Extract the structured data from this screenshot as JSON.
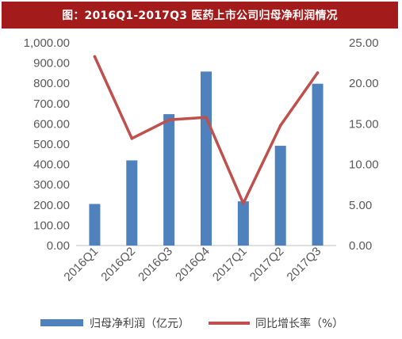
{
  "title": "图：2016Q1-2017Q3 医药上市公司归母净利润情况",
  "chart_data": {
    "type": "bar",
    "title": "图：2016Q1-2017Q3 医药上市公司归母净利润情况",
    "categories": [
      "2016Q1",
      "2016Q2",
      "2016Q3",
      "2016Q4",
      "2017Q1",
      "2017Q2",
      "2017Q3"
    ],
    "series": [
      {
        "name": "归母净利润（亿元）",
        "type": "bar",
        "axis": "left",
        "color": "#4f81bd",
        "values": [
          205,
          420,
          648,
          858,
          218,
          492,
          798
        ]
      },
      {
        "name": "同比增长率（%）",
        "type": "line",
        "axis": "right",
        "color": "#c0504d",
        "values": [
          23.3,
          13.2,
          15.5,
          15.8,
          5.2,
          14.8,
          21.3
        ]
      }
    ],
    "y_left": {
      "lim": [
        0,
        1000
      ],
      "ticks": [
        "0.00",
        "100.00",
        "200.00",
        "300.00",
        "400.00",
        "500.00",
        "600.00",
        "700.00",
        "800.00",
        "900.00",
        "1,000.00"
      ]
    },
    "y_right": {
      "lim": [
        0,
        25
      ],
      "ticks": [
        "0.00",
        "5.00",
        "10.00",
        "15.00",
        "20.00",
        "25.00"
      ]
    },
    "grid": false,
    "legend": "bottom",
    "legend_items": [
      "归母净利润（亿元）",
      "同比增长率（%）"
    ]
  }
}
